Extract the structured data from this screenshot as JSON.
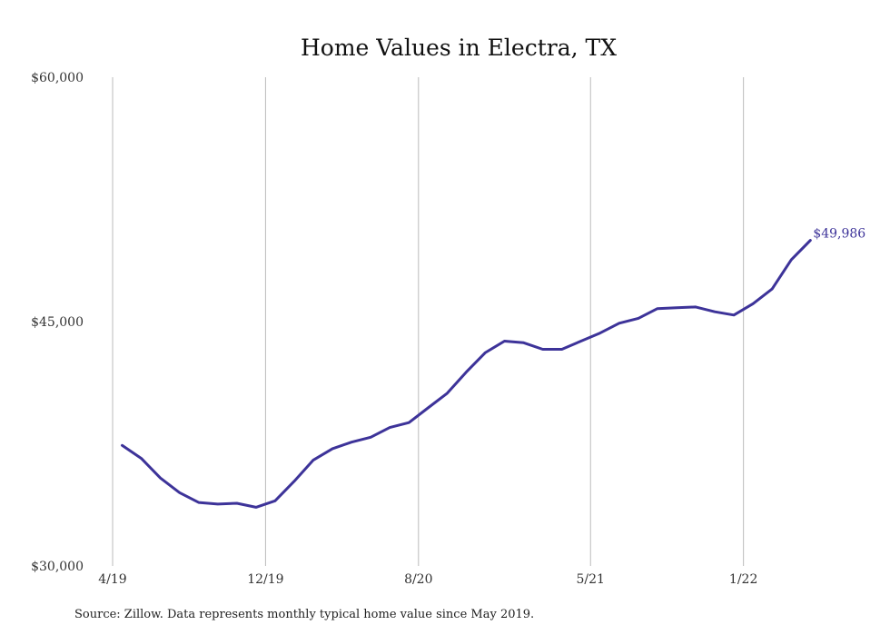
{
  "chart_data": {
    "type": "line",
    "title": "Home Values in Electra, TX",
    "xlabel": "",
    "ylabel": "",
    "ylim": [
      30000,
      60000
    ],
    "y_ticks": [
      "$60,000",
      "$45,000",
      "$30,000"
    ],
    "y_tick_values": [
      60000,
      45000,
      30000
    ],
    "x_ticks": [
      "4/19",
      "12/19",
      "8/20",
      "5/21",
      "1/22"
    ],
    "x_tick_months": [
      0,
      8,
      16,
      25,
      33
    ],
    "grid": "vertical",
    "x": [
      "5/19",
      "6/19",
      "7/19",
      "8/19",
      "9/19",
      "10/19",
      "11/19",
      "12/19",
      "1/20",
      "2/20",
      "3/20",
      "4/20",
      "5/20",
      "6/20",
      "7/20",
      "8/20",
      "9/20",
      "10/20",
      "11/20",
      "12/20",
      "1/21",
      "2/21",
      "3/21",
      "4/21",
      "5/21",
      "6/21",
      "7/21",
      "8/21",
      "9/21",
      "10/21",
      "11/21",
      "12/21",
      "1/22",
      "2/22",
      "3/22",
      "4/22",
      "5/22"
    ],
    "series": [
      {
        "values": [
          37400,
          36600,
          35400,
          34500,
          33900,
          33800,
          33850,
          33600,
          34000,
          35200,
          36500,
          37200,
          37600,
          37900,
          38500,
          38800,
          39700,
          40600,
          41900,
          43100,
          43800,
          43700,
          43300,
          43300,
          43800,
          44300,
          44900,
          45200,
          45800,
          45850,
          45900,
          45600,
          45400,
          46100,
          47000,
          48800,
          49986
        ]
      }
    ],
    "end_label": "$49,986",
    "line_color": "#3d3399",
    "grid_color": "#bbbbbb"
  },
  "footer": {
    "source": "Source: Zillow. Data represents monthly typical home value since May 2019."
  }
}
